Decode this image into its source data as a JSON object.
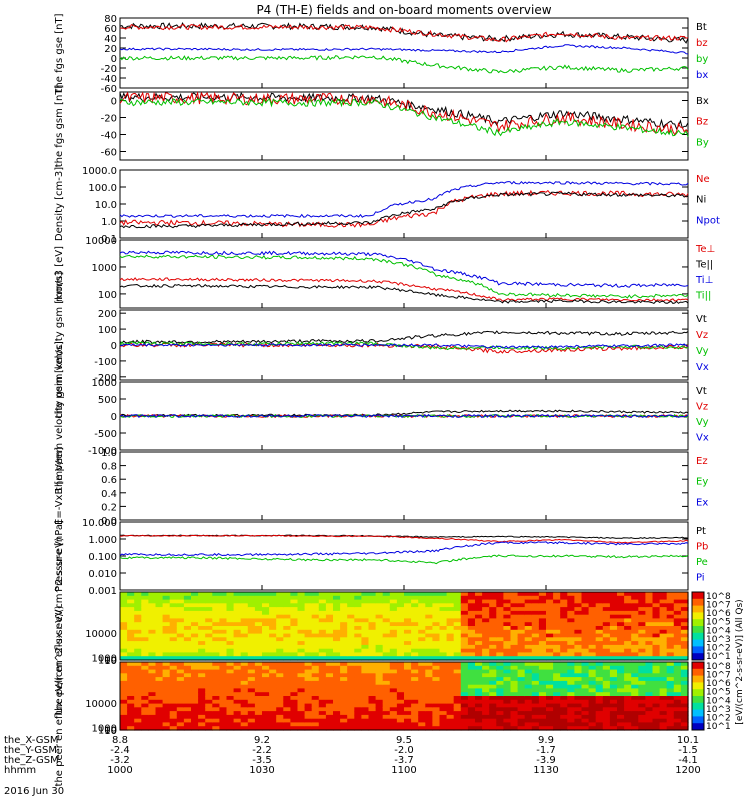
{
  "title": "P4 (TH-E) fields and on-board moments overview",
  "date_label": "2016 Jun 30",
  "orbit_rows": [
    {
      "label": "the_X-GSM",
      "values": [
        "8.8",
        "9.2",
        "9.5",
        "9.9",
        "10.1"
      ]
    },
    {
      "label": "the_Y-GSM",
      "values": [
        "-2.4",
        "-2.2",
        "-2.0",
        "-1.7",
        "-1.5"
      ]
    },
    {
      "label": "the_Z-GSM",
      "values": [
        "-3.2",
        "-3.5",
        "-3.7",
        "-3.9",
        "-4.1"
      ]
    },
    {
      "label": "hhmm",
      "values": [
        "1000",
        "1030",
        "1100",
        "1130",
        "1200"
      ]
    }
  ],
  "colorbar_label": "[eV/(cm^2-s-sr-eV)] (All Qs)",
  "colorbar_ticks": [
    "10^8",
    "10^7",
    "10^6",
    "10^5",
    "10^4",
    "10^3",
    "10^2",
    "10^1"
  ],
  "colors": {
    "black": "#000000",
    "red": "#e00000",
    "green": "#00c000",
    "blue": "#0000e0"
  },
  "chart_data": [
    {
      "type": "line",
      "ylabel": "the fgs gse [nT]",
      "yticks": [
        "80",
        "60",
        "40",
        "20",
        "0",
        "-20",
        "-40",
        "-60"
      ],
      "ylim": [
        -60,
        80
      ],
      "x": [
        "1000",
        "1030",
        "1100",
        "1130",
        "1200"
      ],
      "series": [
        {
          "name": "Bt",
          "color": "black",
          "base": [
            64,
            64,
            64,
            63,
            62,
            45,
            38,
            48,
            42,
            35
          ],
          "noise": 6
        },
        {
          "name": "bz",
          "color": "red",
          "base": [
            62,
            62,
            62,
            62,
            61,
            48,
            36,
            50,
            40,
            40
          ],
          "noise": 5
        },
        {
          "name": "by",
          "color": "green",
          "base": [
            0,
            0,
            0,
            0,
            3,
            -15,
            -28,
            -18,
            -25,
            -20
          ],
          "noise": 4
        },
        {
          "name": "bx",
          "color": "blue",
          "base": [
            18,
            18,
            17,
            17,
            18,
            15,
            12,
            25,
            20,
            10
          ],
          "noise": 2
        }
      ]
    },
    {
      "type": "line",
      "ylabel": "the fgs gsm [nT]",
      "yticks": [
        "0",
        "-20",
        "-40",
        "-60"
      ],
      "ylim": [
        -70,
        10
      ],
      "x": [
        "1000",
        "1030",
        "1100",
        "1130",
        "1200"
      ],
      "series": [
        {
          "name": "Bx",
          "color": "black",
          "base": [
            4,
            4,
            4,
            3,
            3,
            -10,
            -25,
            -15,
            -22,
            -30
          ],
          "noise": 5
        },
        {
          "name": "Bz",
          "color": "red",
          "base": [
            3,
            3,
            2,
            2,
            2,
            -14,
            -30,
            -20,
            -28,
            -35
          ],
          "noise": 7
        },
        {
          "name": "By",
          "color": "green",
          "base": [
            -2,
            -2,
            -2,
            -3,
            -2,
            -20,
            -38,
            -25,
            -32,
            -40
          ],
          "noise": 4
        }
      ]
    },
    {
      "type": "line",
      "log": true,
      "ylabel": "Density [cm-3]",
      "yticks": [
        "1000.0",
        "100.0",
        "10.0",
        "1.0",
        "0.1"
      ],
      "ylim": [
        0.1,
        1000
      ],
      "x": [
        "1000",
        "1030",
        "1100",
        "1130",
        "1200"
      ],
      "series": [
        {
          "name": "Ne",
          "color": "red",
          "base": [
            0.8,
            0.8,
            0.7,
            0.6,
            0.6,
            3,
            40,
            45,
            40,
            35
          ],
          "noise": 0.15
        },
        {
          "name": "Ni",
          "color": "black",
          "base": [
            0.5,
            0.5,
            0.6,
            0.7,
            0.8,
            5,
            35,
            40,
            35,
            30
          ],
          "noise": 0.1
        },
        {
          "name": "Npot",
          "color": "blue",
          "base": [
            2,
            2,
            2,
            2,
            2,
            20,
            180,
            180,
            160,
            150
          ],
          "noise": 0.08
        }
      ]
    },
    {
      "type": "line",
      "log": true,
      "ylabel": "mom3 [eV]",
      "yticks": [
        "10000",
        "1000",
        "100"
      ],
      "ylim": [
        30,
        10000
      ],
      "x": [
        "1000",
        "1030",
        "1100",
        "1130",
        "1200"
      ],
      "series": [
        {
          "name": "Te⊥",
          "color": "red",
          "base": [
            350,
            350,
            330,
            320,
            300,
            150,
            60,
            65,
            60,
            60
          ],
          "noise": 0.05
        },
        {
          "name": "Te||",
          "color": "black",
          "base": [
            200,
            200,
            190,
            180,
            180,
            90,
            50,
            55,
            50,
            48
          ],
          "noise": 0.05
        },
        {
          "name": "Ti⊥",
          "color": "blue",
          "base": [
            3500,
            3400,
            3300,
            3200,
            3000,
            800,
            250,
            220,
            200,
            220
          ],
          "noise": 0.06
        },
        {
          "name": "Ti||",
          "color": "green",
          "base": [
            2500,
            2400,
            2300,
            2200,
            2000,
            500,
            100,
            90,
            80,
            90
          ],
          "noise": 0.06
        }
      ]
    },
    {
      "type": "line",
      "ylabel": "the peim velocity gsm [km/s]",
      "yticks": [
        "200",
        "100",
        "0",
        "-100",
        "-200"
      ],
      "ylim": [
        -220,
        220
      ],
      "x": [
        "1000",
        "1030",
        "1100",
        "1130",
        "1200"
      ],
      "series": [
        {
          "name": "Vt",
          "color": "black",
          "base": [
            20,
            20,
            20,
            25,
            25,
            60,
            80,
            75,
            70,
            80
          ],
          "noise": 10
        },
        {
          "name": "Vz",
          "color": "red",
          "base": [
            0,
            0,
            0,
            0,
            0,
            -10,
            -40,
            -30,
            -20,
            -10
          ],
          "noise": 12
        },
        {
          "name": "Vy",
          "color": "green",
          "base": [
            10,
            10,
            5,
            10,
            10,
            -20,
            -15,
            -20,
            -10,
            -15
          ],
          "noise": 10
        },
        {
          "name": "Vx",
          "color": "blue",
          "base": [
            0,
            0,
            0,
            0,
            0,
            0,
            -15,
            -10,
            -5,
            0
          ],
          "noise": 8
        }
      ]
    },
    {
      "type": "line",
      "ylabel": "the peem velocity gsm [km/s]",
      "yticks": [
        "1000",
        "500",
        "0",
        "-500",
        "-1000"
      ],
      "ylim": [
        -1000,
        1000
      ],
      "x": [
        "1000",
        "1030",
        "1100",
        "1130",
        "1200"
      ],
      "series": [
        {
          "name": "Vt",
          "color": "black",
          "base": [
            20,
            20,
            20,
            25,
            25,
            120,
            150,
            150,
            120,
            100
          ],
          "noise": 30
        },
        {
          "name": "Vz",
          "color": "red",
          "base": [
            0,
            0,
            0,
            0,
            0,
            0,
            0,
            0,
            0,
            0
          ],
          "noise": 40
        },
        {
          "name": "Vy",
          "color": "green",
          "base": [
            0,
            0,
            0,
            0,
            0,
            0,
            0,
            0,
            0,
            0
          ],
          "noise": 40
        },
        {
          "name": "Vx",
          "color": "blue",
          "base": [
            0,
            0,
            0,
            0,
            0,
            0,
            0,
            0,
            0,
            0
          ],
          "noise": 40
        }
      ]
    },
    {
      "type": "line",
      "ylabel": "E=-VxB [mV/m]",
      "yticks": [
        "1.0",
        "0.8",
        "0.6",
        "0.4",
        "0.2",
        "0.0"
      ],
      "ylim": [
        0,
        1
      ],
      "x": [
        "1000",
        "1030",
        "1100",
        "1130",
        "1200"
      ],
      "series": [
        {
          "name": "Ez",
          "color": "red",
          "base": [],
          "noise": 0
        },
        {
          "name": "Ey",
          "color": "green",
          "base": [],
          "noise": 0
        },
        {
          "name": "Ex",
          "color": "blue",
          "base": [],
          "noise": 0
        }
      ]
    },
    {
      "type": "line",
      "log": true,
      "ylabel": "Pressure [nPa]",
      "yticks": [
        "10.000",
        "1.000",
        "0.100",
        "0.010",
        "0.001"
      ],
      "ylim": [
        0.001,
        10
      ],
      "x": [
        "1000",
        "1030",
        "1100",
        "1130",
        "1200"
      ],
      "series": [
        {
          "name": "Pt",
          "color": "black",
          "base": [
            1.6,
            1.6,
            1.6,
            1.6,
            1.5,
            1.3,
            1.4,
            1.3,
            1.1,
            1.2
          ],
          "noise": 0.03
        },
        {
          "name": "Pb",
          "color": "red",
          "base": [
            1.55,
            1.55,
            1.55,
            1.5,
            1.45,
            1.1,
            0.7,
            0.9,
            0.6,
            0.8
          ],
          "noise": 0.03
        },
        {
          "name": "Pe",
          "color": "green",
          "base": [
            0.08,
            0.08,
            0.07,
            0.06,
            0.06,
            0.04,
            0.1,
            0.1,
            0.09,
            0.1
          ],
          "noise": 0.06
        },
        {
          "name": "Pi",
          "color": "blue",
          "base": [
            0.12,
            0.12,
            0.12,
            0.13,
            0.14,
            0.2,
            0.6,
            0.6,
            0.5,
            0.55
          ],
          "noise": 0.06
        }
      ]
    },
    {
      "type": "heatmap",
      "ylabel": "the peir en eflux eV/(cm^2-s-sr-eV)",
      "yticks": [
        "10000",
        "1000",
        "100",
        "10"
      ],
      "ylim": [
        5,
        25000
      ],
      "x": [
        "1000",
        "1030",
        "1100",
        "1130",
        "1200"
      ]
    },
    {
      "type": "heatmap",
      "ylabel": "the peer en eflux eV/(cm^2-s-sr-eV)",
      "yticks": [
        "10000",
        "1000",
        "100",
        "10"
      ],
      "ylim": [
        5,
        25000
      ],
      "x": [
        "1000",
        "1030",
        "1100",
        "1130",
        "1200"
      ]
    }
  ]
}
